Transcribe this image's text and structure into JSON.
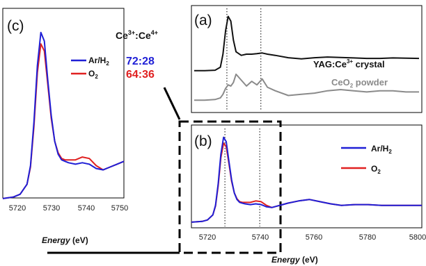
{
  "colors": {
    "ar_h2": "#1f1fd6",
    "o2": "#e02020",
    "yag": "#111111",
    "ceo2": "#8a8a8a"
  },
  "header": {
    "ratio_prefix": "Ce",
    "ratio_sup1": "3+",
    "ratio_sep": ":Ce",
    "ratio_sup2": "4+"
  },
  "panels": {
    "a": {
      "label": "(a)",
      "yag_label_main": "YAG:Ce",
      "yag_label_sup": "3+",
      "yag_label_end": " crystal",
      "ceo2_label_main": "CeO",
      "ceo2_label_sub": "2",
      "ceo2_label_end": " powder"
    },
    "b": {
      "label": "(b)",
      "legend_ar_main": "Ar/H",
      "legend_ar_sub": "2",
      "legend_o2_main": "O",
      "legend_o2_sub": "2"
    },
    "c": {
      "label": "(c)",
      "legend_ar_main": "Ar/H",
      "legend_ar_sub": "2",
      "legend_o2_main": "O",
      "legend_o2_sub": "2",
      "ar_ratio": "72:28",
      "o2_ratio": "64:36"
    }
  },
  "axes": {
    "c_x": {
      "label_main": "Energy",
      "label_unit": " (eV)",
      "ticks": [
        "5720",
        "5730",
        "5740",
        "5750"
      ]
    },
    "b_x": {
      "label_main": "Energy",
      "label_unit": " (eV)",
      "ticks": [
        "5720",
        "5740",
        "5760",
        "5780",
        "5800"
      ]
    }
  },
  "chart_data": [
    {
      "panel": "a",
      "type": "line",
      "xlim": [
        5714,
        5800
      ],
      "x": [
        5714,
        5718,
        5722,
        5724,
        5725,
        5726,
        5727,
        5728,
        5729,
        5730,
        5732,
        5734,
        5736,
        5738,
        5740,
        5742,
        5745,
        5750,
        5755,
        5760,
        5765,
        5770,
        5775,
        5780,
        5785,
        5790,
        5795,
        5800
      ],
      "series": [
        {
          "name": "YAG:Ce3+ crystal",
          "values": [
            0.3,
            0.3,
            0.32,
            0.45,
            1.0,
            2.0,
            2.6,
            2.4,
            1.6,
            1.1,
            0.95,
            1.0,
            1.0,
            1.02,
            1.05,
            1.0,
            0.95,
            0.85,
            0.8,
            0.85,
            0.88,
            0.86,
            0.84,
            0.82,
            0.82,
            0.84,
            0.83,
            0.82
          ]
        },
        {
          "name": "CeO2 powder",
          "values": [
            -0.95,
            -0.95,
            -0.92,
            -0.85,
            -0.7,
            -0.45,
            -0.3,
            -0.35,
            -0.2,
            0.15,
            -0.1,
            -0.35,
            -0.15,
            -0.3,
            -0.05,
            -0.4,
            -0.55,
            -0.75,
            -0.7,
            -0.65,
            -0.55,
            -0.5,
            -0.55,
            -0.6,
            -0.55,
            -0.55,
            -0.6,
            -0.6
          ]
        }
      ],
      "vlines": [
        5726.5,
        5739.5
      ]
    },
    {
      "panel": "b",
      "type": "line",
      "xlim": [
        5714,
        5800
      ],
      "ylim": [
        0,
        1.3
      ],
      "x": [
        5714,
        5718,
        5720,
        5722,
        5723,
        5724,
        5725,
        5726,
        5727,
        5728,
        5729,
        5730,
        5731,
        5732,
        5733,
        5734,
        5736,
        5738,
        5740,
        5742,
        5744,
        5746,
        5748,
        5750,
        5754,
        5758,
        5762,
        5766,
        5770,
        5775,
        5780,
        5785,
        5790,
        5795,
        5800
      ],
      "series": [
        {
          "name": "Ar/H2",
          "values": [
            0.02,
            0.03,
            0.05,
            0.12,
            0.25,
            0.55,
            0.95,
            1.18,
            1.12,
            0.85,
            0.6,
            0.42,
            0.33,
            0.29,
            0.28,
            0.27,
            0.26,
            0.27,
            0.26,
            0.23,
            0.22,
            0.24,
            0.26,
            0.28,
            0.31,
            0.33,
            0.3,
            0.27,
            0.25,
            0.26,
            0.26,
            0.25,
            0.25,
            0.25,
            0.25
          ]
        },
        {
          "name": "O2",
          "values": [
            0.02,
            0.03,
            0.05,
            0.12,
            0.24,
            0.52,
            0.9,
            1.1,
            1.05,
            0.82,
            0.58,
            0.42,
            0.34,
            0.3,
            0.29,
            0.29,
            0.29,
            0.31,
            0.3,
            0.25,
            0.22,
            0.24,
            0.26,
            0.28,
            0.31,
            0.33,
            0.3,
            0.27,
            0.25,
            0.26,
            0.26,
            0.25,
            0.25,
            0.25,
            0.25
          ]
        }
      ],
      "vlines": [
        5726.5,
        5739.5
      ]
    },
    {
      "panel": "c",
      "type": "line",
      "xlim": [
        5715,
        5750
      ],
      "ylim": [
        0,
        1.3
      ],
      "x": [
        5715,
        5718,
        5720,
        5722,
        5723,
        5724,
        5725,
        5726,
        5727,
        5728,
        5729,
        5730,
        5731,
        5732,
        5733,
        5734,
        5736,
        5738,
        5740,
        5742,
        5744,
        5746,
        5748,
        5750
      ],
      "series": [
        {
          "name": "Ar/H2",
          "values": [
            0.02,
            0.03,
            0.05,
            0.12,
            0.25,
            0.55,
            0.95,
            1.18,
            1.12,
            0.85,
            0.6,
            0.42,
            0.33,
            0.29,
            0.28,
            0.27,
            0.26,
            0.27,
            0.26,
            0.23,
            0.22,
            0.24,
            0.26,
            0.28
          ]
        },
        {
          "name": "O2",
          "values": [
            0.02,
            0.03,
            0.05,
            0.12,
            0.24,
            0.52,
            0.9,
            1.1,
            1.05,
            0.82,
            0.58,
            0.42,
            0.34,
            0.3,
            0.29,
            0.29,
            0.29,
            0.31,
            0.3,
            0.25,
            0.22,
            0.24,
            0.26,
            0.28
          ]
        }
      ]
    }
  ]
}
